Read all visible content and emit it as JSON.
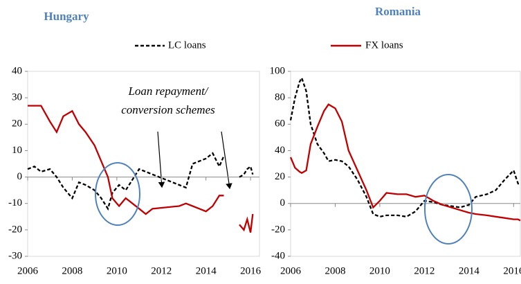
{
  "chart_data": [
    {
      "type": "line",
      "title": "Hungary",
      "annotation": [
        "Loan repayment/",
        "conversion schemes"
      ],
      "xlim": [
        2006,
        2016.4
      ],
      "xticks": [
        2006,
        2008,
        2010,
        2012,
        2014,
        2016
      ],
      "ylim": [
        -30,
        40
      ],
      "yticks": [
        -30,
        -20,
        -10,
        0,
        10,
        20,
        30,
        40
      ],
      "x": [
        2006,
        2006.3,
        2006.6,
        2007,
        2007.3,
        2007.6,
        2008,
        2008.3,
        2008.6,
        2009,
        2009.3,
        2009.6,
        2009.8,
        2010.1,
        2010.4,
        2010.7,
        2011,
        2011.3,
        2011.6,
        2012.8,
        2013.1,
        2013.4,
        2013.7,
        2014,
        2014.3,
        2014.6,
        2014.8,
        2015.1,
        2015.5,
        2015.7,
        2015.85,
        2016,
        2016.1
      ],
      "series": [
        {
          "name": "LC loans",
          "color": "#000000",
          "dash": true,
          "values": [
            3,
            4,
            2,
            3,
            0,
            -4,
            -8,
            -2,
            -3,
            -5,
            -8,
            -12,
            -6,
            -3,
            -5,
            -1,
            3,
            2,
            1,
            -3,
            -4,
            5,
            6,
            7,
            9,
            4,
            8,
            null,
            0,
            1,
            3,
            4,
            1
          ]
        },
        {
          "name": "FX loans",
          "color": "#c00000",
          "dash": false,
          "values": [
            27,
            27,
            27,
            21,
            17,
            23,
            25,
            20,
            17,
            12,
            6,
            0,
            -8,
            -11,
            -8,
            -10,
            -12,
            -14,
            -12,
            -11,
            -10,
            -11,
            -12,
            -13,
            -11,
            -7,
            -7,
            null,
            -18,
            -20,
            -16,
            -21,
            -14
          ]
        }
      ]
    },
    {
      "type": "line",
      "title": "Romania",
      "xlim": [
        2006,
        2016.3
      ],
      "xticks": [
        2006,
        2008,
        2010,
        2012,
        2014,
        2016
      ],
      "ylim": [
        -40,
        100
      ],
      "yticks": [
        -40,
        -20,
        0,
        20,
        40,
        60,
        80,
        100
      ],
      "x": [
        2006,
        2006.2,
        2006.4,
        2006.5,
        2006.7,
        2006.9,
        2007.2,
        2007.5,
        2007.7,
        2008,
        2008.3,
        2008.6,
        2009,
        2009.4,
        2009.7,
        2010,
        2010.3,
        2010.8,
        2011.2,
        2011.6,
        2012,
        2012.4,
        2012.8,
        2013.2,
        2013.6,
        2014,
        2014.3,
        2014.8,
        2015.2,
        2015.6,
        2016,
        2016.2,
        2016.3
      ],
      "series": [
        {
          "color": "#000000",
          "dash": true,
          "values": [
            63,
            80,
            92,
            95,
            85,
            60,
            45,
            38,
            32,
            33,
            32,
            28,
            18,
            5,
            -8,
            -10,
            -9,
            -9,
            -10,
            -6,
            2,
            1,
            -1,
            -2,
            -3,
            -1,
            5,
            7,
            10,
            18,
            25,
            15,
            15
          ]
        },
        {
          "color": "#c00000",
          "dash": false,
          "values": [
            35,
            27,
            24,
            23,
            25,
            45,
            58,
            70,
            75,
            72,
            62,
            40,
            25,
            10,
            -3,
            2,
            8,
            7,
            7,
            5,
            6,
            2,
            -1,
            -3,
            -5,
            -7,
            -8,
            -9,
            -10,
            -11,
            -12,
            -12,
            -13
          ]
        }
      ]
    }
  ]
}
